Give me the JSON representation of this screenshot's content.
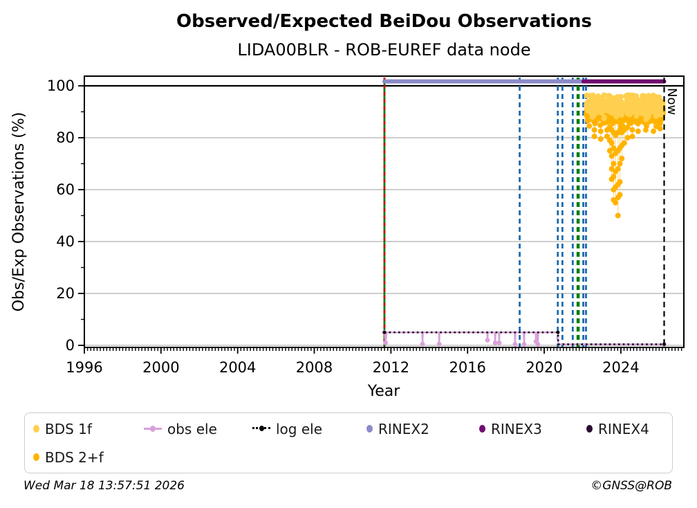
{
  "chart_data": {
    "type": "scatter",
    "title": "Observed/Expected BeiDou Observations",
    "subtitle": "LIDA00BLR - ROB-EUREF data node",
    "xlabel": "Year",
    "ylabel": "Obs/Exp Observations (%)",
    "xlim": [
      1996,
      2027.3
    ],
    "ylim": [
      -1.5,
      104
    ],
    "xticks": [
      1996,
      2000,
      2004,
      2008,
      2012,
      2016,
      2020,
      2024
    ],
    "yticks": [
      0,
      20,
      40,
      60,
      80,
      100
    ],
    "grid": true,
    "grid_color": "#b0b0b0",
    "reference_line": {
      "y": 100,
      "color": "#000000",
      "width": 2.2
    },
    "rinex_lines": [
      {
        "name": "RINEX2",
        "y": 101.7,
        "x0": 2011.66,
        "x1": 2022.05,
        "color": "#8b8bc9",
        "width": 6
      },
      {
        "name": "RINEX3",
        "y": 101.7,
        "x0": 2022.05,
        "x1": 2026.26,
        "color": "#6f0c6f",
        "width": 6
      }
    ],
    "events": [
      {
        "name": "event-2011-green-red",
        "year": 2011.66,
        "color": "#067d06",
        "dash": "",
        "width": 2.8,
        "overlay_color": "#d40000",
        "overlay_dash": "5 5.5",
        "overlay_width": 2.8
      },
      {
        "name": "event-2018-blue",
        "year": 2018.72,
        "color": "#1a6ab3",
        "dash": "7 5",
        "width": 2.8
      },
      {
        "name": "event-2020a-blue",
        "year": 2020.71,
        "color": "#1a6ab3",
        "dash": "7 5",
        "width": 2.8
      },
      {
        "name": "event-2020b-blue",
        "year": 2020.95,
        "color": "#1a6ab3",
        "dash": "7 5",
        "width": 2.8
      },
      {
        "name": "event-2021a-blue",
        "year": 2021.49,
        "color": "#1a6ab3",
        "dash": "7 5",
        "width": 2.8
      },
      {
        "name": "event-2021-green",
        "year": 2021.77,
        "color": "#078007",
        "dash": "7 5",
        "width": 4.6
      },
      {
        "name": "event-2022a-blue",
        "year": 2022.04,
        "color": "#1a6ab3",
        "dash": "7 5",
        "width": 2.8
      },
      {
        "name": "event-2022b-blue",
        "year": 2022.18,
        "color": "#1a6ab3",
        "dash": "7 5",
        "width": 2.8
      }
    ],
    "now_line": {
      "year": 2026.26,
      "label": "Now",
      "color": "#000000",
      "dash": "8 5.5",
      "width": 2.2
    },
    "obs_ele": {
      "name": "obs ele",
      "color": "#d9a0d9",
      "width": 2.4,
      "base": 5,
      "low": 0.4,
      "points": [
        [
          2011.66,
          5
        ],
        [
          2011.72,
          1.0
        ],
        [
          2011.78,
          5
        ],
        [
          2013.63,
          5
        ],
        [
          2013.65,
          0.5
        ],
        [
          2013.67,
          5
        ],
        [
          2014.5,
          5
        ],
        [
          2014.52,
          0.5
        ],
        [
          2014.54,
          5
        ],
        [
          2017.02,
          5
        ],
        [
          2017.04,
          2.0
        ],
        [
          2017.06,
          5
        ],
        [
          2017.42,
          5
        ],
        [
          2017.44,
          1.0
        ],
        [
          2017.46,
          5
        ],
        [
          2017.63,
          5
        ],
        [
          2017.65,
          1.0
        ],
        [
          2017.67,
          5
        ],
        [
          2018.46,
          5
        ],
        [
          2018.48,
          0.4
        ],
        [
          2018.5,
          5
        ],
        [
          2018.93,
          5
        ],
        [
          2018.95,
          0.4
        ],
        [
          2018.97,
          5
        ],
        [
          2019.55,
          5
        ],
        [
          2019.57,
          1.5
        ],
        [
          2019.59,
          5
        ],
        [
          2019.65,
          5
        ],
        [
          2019.67,
          0.4
        ],
        [
          2019.69,
          5
        ],
        [
          2020.72,
          5
        ],
        [
          2020.73,
          0.4
        ],
        [
          2026.26,
          0.4
        ]
      ],
      "markers": [
        [
          2011.66,
          5
        ],
        [
          2011.72,
          1.0
        ],
        [
          2013.65,
          0.5
        ],
        [
          2014.52,
          0.5
        ],
        [
          2017.04,
          2.0
        ],
        [
          2017.44,
          1.0
        ],
        [
          2017.65,
          1.0
        ],
        [
          2018.48,
          0.4
        ],
        [
          2018.95,
          0.4
        ],
        [
          2019.57,
          1.5
        ],
        [
          2019.67,
          0.4
        ],
        [
          2026.26,
          0.4
        ]
      ]
    },
    "log_ele": {
      "name": "log ele",
      "color": "#000000",
      "width": 2.6,
      "dash": "2.5 4.2",
      "points": [
        [
          2011.66,
          5
        ],
        [
          2020.72,
          5
        ],
        [
          2020.73,
          0.4
        ],
        [
          2026.26,
          0.4
        ]
      ],
      "markers": [
        [
          2011.66,
          5
        ],
        [
          2020.72,
          5
        ],
        [
          2026.26,
          0.4
        ]
      ]
    },
    "scatter": {
      "seed": 42,
      "x_start": 2022.2,
      "x_end": 2026.22,
      "series": [
        {
          "name": "BDS 2+f",
          "color": "#ffb300",
          "n": 430,
          "y_mean": 89.3,
          "y_sd": 2.1,
          "y_min": 84.3,
          "y_max": 95.5,
          "r": 4
        },
        {
          "name": "BDS 1f",
          "color": "#ffd04f",
          "n": 430,
          "y_mean": 92.2,
          "y_sd": 1.9,
          "y_min": 86.5,
          "y_max": 97.3,
          "r": 4
        }
      ],
      "outlier_color": "#ffb300",
      "link_color": "#ffd98f",
      "outlier_columns": [
        {
          "x": 2022.62,
          "ys": [
            83,
            80.5
          ]
        },
        {
          "x": 2022.95,
          "ys": [
            82.5,
            79.5
          ]
        },
        {
          "x": 2023.28,
          "ys": [
            83,
            80.5
          ]
        },
        {
          "x": 2023.42,
          "ys": [
            84,
            79,
            75
          ]
        },
        {
          "x": 2023.52,
          "ys": [
            83,
            78,
            73,
            68,
            64
          ]
        },
        {
          "x": 2023.62,
          "ys": [
            82,
            76,
            70,
            65,
            60,
            56
          ]
        },
        {
          "x": 2023.72,
          "ys": [
            81,
            74,
            67,
            61,
            55
          ]
        },
        {
          "x": 2023.85,
          "ys": [
            82,
            75,
            68,
            62,
            57,
            50
          ]
        },
        {
          "x": 2023.95,
          "ys": [
            83,
            76,
            70,
            63,
            58
          ]
        },
        {
          "x": 2024.05,
          "ys": [
            82,
            77,
            72
          ]
        },
        {
          "x": 2024.18,
          "ys": [
            83,
            78
          ]
        },
        {
          "x": 2024.35,
          "ys": [
            84,
            80
          ]
        },
        {
          "x": 2024.6,
          "ys": [
            83,
            80.5
          ]
        },
        {
          "x": 2024.9,
          "ys": [
            82.5
          ]
        },
        {
          "x": 2025.3,
          "ys": [
            83
          ]
        },
        {
          "x": 2025.7,
          "ys": [
            82.5
          ]
        },
        {
          "x": 2026.05,
          "ys": [
            83.5
          ]
        }
      ]
    }
  },
  "legend": {
    "items": [
      {
        "label": "BDS 1f",
        "type": "dot",
        "color": "#ffd04f"
      },
      {
        "label": "obs ele",
        "type": "line-dot",
        "color": "#d9a0d9"
      },
      {
        "label": "log ele",
        "type": "dotted-dot",
        "color": "#000000"
      },
      {
        "label": "RINEX2",
        "type": "dot",
        "color": "#8b8bc9"
      },
      {
        "label": "RINEX3",
        "type": "dot",
        "color": "#6f0c6f"
      },
      {
        "label": "RINEX4",
        "type": "dot",
        "color": "#2b0b33"
      },
      {
        "label": "BDS 2+f",
        "type": "dot",
        "color": "#ffb300"
      }
    ]
  },
  "footer": {
    "timestamp": "Wed Mar 18 13:57:51 2026",
    "credit": "©GNSS@ROB"
  }
}
